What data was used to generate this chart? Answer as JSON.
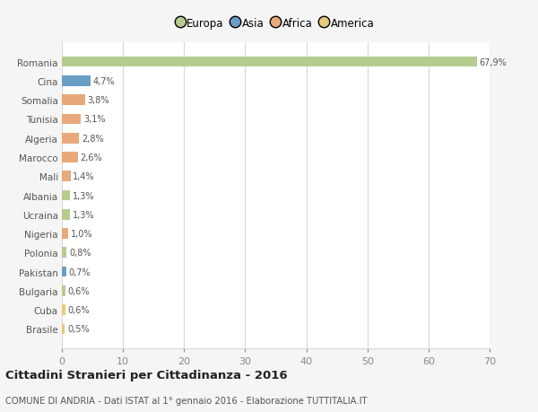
{
  "countries": [
    "Romania",
    "Cina",
    "Somalia",
    "Tunisia",
    "Algeria",
    "Marocco",
    "Mali",
    "Albania",
    "Ucraina",
    "Nigeria",
    "Polonia",
    "Pakistan",
    "Bulgaria",
    "Cuba",
    "Brasile"
  ],
  "values": [
    67.9,
    4.7,
    3.8,
    3.1,
    2.8,
    2.6,
    1.4,
    1.3,
    1.3,
    1.0,
    0.8,
    0.7,
    0.6,
    0.6,
    0.5
  ],
  "labels": [
    "67,9%",
    "4,7%",
    "3,8%",
    "3,1%",
    "2,8%",
    "2,6%",
    "1,4%",
    "1,3%",
    "1,3%",
    "1,0%",
    "0,8%",
    "0,7%",
    "0,6%",
    "0,6%",
    "0,5%"
  ],
  "colors": [
    "#b5cc8e",
    "#6a9ec5",
    "#e8a97a",
    "#e8a97a",
    "#e8a97a",
    "#e8a97a",
    "#e8a97a",
    "#b5cc8e",
    "#b5cc8e",
    "#e8a97a",
    "#b5cc8e",
    "#6a9ec5",
    "#b5cc8e",
    "#e8c97a",
    "#e8c97a"
  ],
  "legend_labels": [
    "Europa",
    "Asia",
    "Africa",
    "America"
  ],
  "legend_colors": [
    "#b5cc8e",
    "#6a9ec5",
    "#e8a97a",
    "#e8c97a"
  ],
  "title": "Cittadini Stranieri per Cittadinanza - 2016",
  "subtitle": "COMUNE DI ANDRIA - Dati ISTAT al 1° gennaio 2016 - Elaborazione TUTTITALIA.IT",
  "xlim": [
    0,
    70
  ],
  "xticks": [
    0,
    10,
    20,
    30,
    40,
    50,
    60,
    70
  ],
  "background_color": "#f5f5f5",
  "bar_background": "#ffffff",
  "grid_color": "#d8d8d8"
}
